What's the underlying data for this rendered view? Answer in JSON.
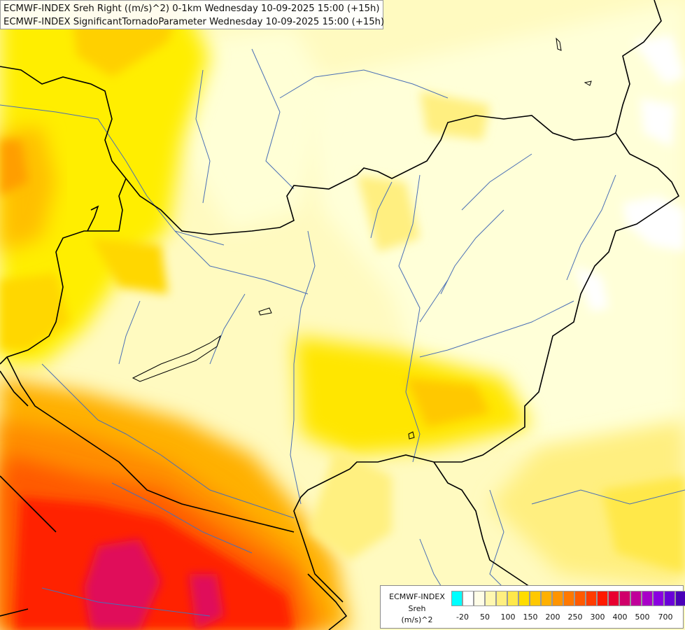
{
  "header": {
    "line1": "ECMWF-INDEX Sreh Right ((m/s)^2) 0-1km Wednesday 10-09-2025 15:00 (+15h)",
    "line2": "ECMWF-INDEX SignificantTornadoParameter Wednesday 10-09-2025 15:00 (+15h)"
  },
  "legend": {
    "model": "ECMWF-INDEX",
    "variable": "Sreh",
    "unit": "(m/s)^2",
    "ticks": [
      "-20",
      "50",
      "100",
      "150",
      "200",
      "250",
      "300",
      "400",
      "500",
      "700"
    ],
    "colors": [
      "#00ffff",
      "#ffffff",
      "#fffde6",
      "#fff7b0",
      "#ffef80",
      "#ffe84a",
      "#ffdd00",
      "#ffc800",
      "#ffb000",
      "#ff9400",
      "#ff7800",
      "#ff5a00",
      "#ff3c00",
      "#ff1a00",
      "#e80030",
      "#d0006a",
      "#c0009a",
      "#a800c8",
      "#8a00e0",
      "#6a00d8",
      "#4a00b8",
      "#2c0098",
      "#100070"
    ]
  },
  "map": {
    "scale_colors": {
      "cyan": "#00ffff",
      "white": "#ffffff",
      "very_light_yellow": "#ffffcc",
      "light_yellow": "#fffaa8",
      "pale_yellow": "#ffef80",
      "yellow": "#ffee00",
      "gold": "#ffd700",
      "light_orange": "#ffbf00",
      "orange": "#ff9900",
      "dark_orange": "#ff6600",
      "red": "#ff1a00",
      "magenta": "#e0105a"
    },
    "border_color": "#000000",
    "river_color": "#4a6fb5"
  }
}
